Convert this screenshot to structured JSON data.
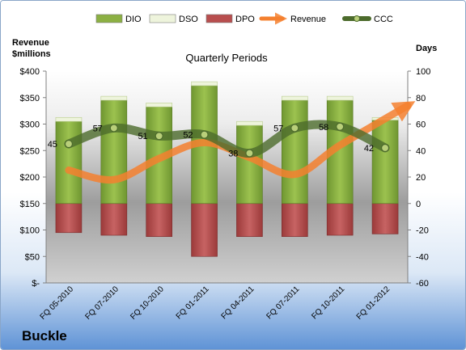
{
  "company": "Buckle",
  "chart_data": {
    "type": "bar",
    "title": "Quarterly Periods",
    "left_axis_label": [
      "Revenue",
      "$millions"
    ],
    "right_axis_label": "Days",
    "categories": [
      "FQ 05-2010",
      "FQ 07-2010",
      "FQ 10-2010",
      "FQ 01-2011",
      "FQ 04-2011",
      "FQ 07-2011",
      "FQ 10-2011",
      "FQ 01-2012"
    ],
    "left_axis": {
      "min": 0,
      "max": 400,
      "step": 50,
      "ticks": [
        "$-",
        "$50",
        "$100",
        "$150",
        "$200",
        "$250",
        "$300",
        "$350",
        "$400"
      ]
    },
    "right_axis": {
      "min": -60,
      "max": 100,
      "step": 20,
      "ticks": [
        "-60",
        "-40",
        "-20",
        "0",
        "20",
        "40",
        "60",
        "80",
        "100"
      ]
    },
    "legend_position": "top",
    "grid": false,
    "series": [
      {
        "name": "DIO",
        "axis": "right",
        "kind": "bar",
        "color": "#8cb043",
        "values": [
          62,
          78,
          73,
          89,
          59,
          78,
          78,
          63
        ]
      },
      {
        "name": "DSO",
        "axis": "right",
        "kind": "bar-stacked",
        "color": "#eef4dc",
        "values": [
          3,
          3,
          3,
          3,
          3,
          3,
          3,
          2
        ]
      },
      {
        "name": "DPO",
        "axis": "right",
        "kind": "bar-negative",
        "color": "#b84e4e",
        "values": [
          -22,
          -24,
          -25,
          -40,
          -25,
          -25,
          -24,
          -23
        ]
      },
      {
        "name": "Revenue",
        "axis": "left",
        "kind": "line-arrow",
        "color": "#f4802f",
        "values": [
          213,
          195,
          235,
          265,
          237,
          205,
          260,
          335
        ]
      },
      {
        "name": "CCC",
        "axis": "right",
        "kind": "line-marker",
        "color": "#4c6b2c",
        "values": [
          45,
          57,
          51,
          52,
          38,
          57,
          58,
          42
        ],
        "labels": [
          "45",
          "57",
          "51",
          "52",
          "38",
          "57",
          "58",
          "42"
        ]
      }
    ],
    "legend": [
      {
        "name": "DIO",
        "color": "#8cb043",
        "symbol": "box"
      },
      {
        "name": "DSO",
        "color": "#eef4dc",
        "symbol": "box"
      },
      {
        "name": "DPO",
        "color": "#b84e4e",
        "symbol": "box"
      },
      {
        "name": "Revenue",
        "color": "#f4802f",
        "symbol": "arrow"
      },
      {
        "name": "CCC",
        "color": "#4c6b2c",
        "symbol": "line-marker"
      }
    ]
  }
}
